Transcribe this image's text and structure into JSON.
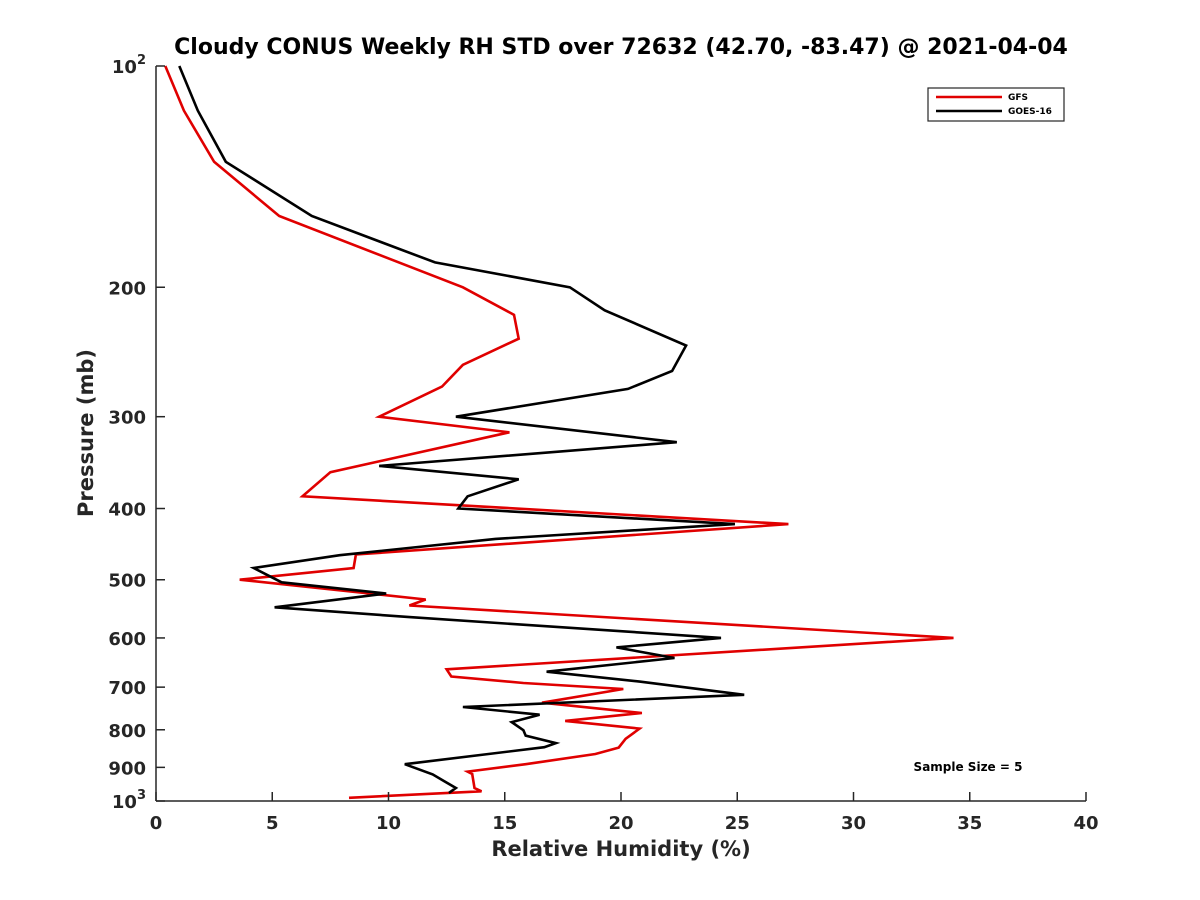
{
  "chart_data": {
    "type": "line",
    "title": "Cloudy CONUS Weekly RH STD over 72632 (42.70, -83.47) @ 2021-04-04",
    "xlabel": "Relative Humidity (%)",
    "ylabel": "Pressure (mb)",
    "xlim": [
      0,
      40
    ],
    "ylim": [
      100,
      1000
    ],
    "y_scale": "log",
    "y_reversed": true,
    "x_ticks": [
      "0",
      "5",
      "10",
      "15",
      "20",
      "25",
      "30",
      "35",
      "40"
    ],
    "y_ticks": [
      {
        "value": 100,
        "base": "10",
        "exp": "2"
      },
      {
        "value": 200,
        "label": "200"
      },
      {
        "value": 300,
        "label": "300"
      },
      {
        "value": 400,
        "label": "400"
      },
      {
        "value": 500,
        "label": "500"
      },
      {
        "value": 600,
        "label": "600"
      },
      {
        "value": 700,
        "label": "700"
      },
      {
        "value": 800,
        "label": "800"
      },
      {
        "value": 900,
        "label": "900"
      },
      {
        "value": 1000,
        "base": "10",
        "exp": "3"
      }
    ],
    "grid": false,
    "legend_position": "top-right",
    "annotation": "Sample Size = 5",
    "series": [
      {
        "name": "GFS",
        "color": "#e00000",
        "points": [
          [
            0.4,
            100
          ],
          [
            1.2,
            115
          ],
          [
            2.5,
            135
          ],
          [
            5.3,
            160
          ],
          [
            13.2,
            200
          ],
          [
            15.4,
            218
          ],
          [
            15.6,
            235
          ],
          [
            13.2,
            255
          ],
          [
            12.3,
            273
          ],
          [
            9.6,
            300
          ],
          [
            15.2,
            315
          ],
          [
            7.5,
            357
          ],
          [
            6.3,
            385
          ],
          [
            27.2,
            420
          ],
          [
            8.6,
            462
          ],
          [
            8.5,
            482
          ],
          [
            3.6,
            500
          ],
          [
            11.6,
            532
          ],
          [
            10.9,
            542
          ],
          [
            34.3,
            600
          ],
          [
            12.5,
            662
          ],
          [
            12.7,
            677
          ],
          [
            15.8,
            691
          ],
          [
            20.1,
            704
          ],
          [
            16.6,
            735
          ],
          [
            20.9,
            759
          ],
          [
            17.6,
            778
          ],
          [
            20.8,
            797
          ],
          [
            20.2,
            823
          ],
          [
            19.9,
            846
          ],
          [
            18.9,
            863
          ],
          [
            15.9,
            891
          ],
          [
            13.4,
            912
          ],
          [
            13.6,
            919
          ],
          [
            13.7,
            960
          ],
          [
            14.0,
            970
          ],
          [
            8.3,
            990
          ]
        ]
      },
      {
        "name": "GOES-16",
        "color": "#000000",
        "points": [
          [
            1.0,
            100
          ],
          [
            1.8,
            115
          ],
          [
            3.0,
            135
          ],
          [
            6.7,
            160
          ],
          [
            12.0,
            185
          ],
          [
            17.8,
            200
          ],
          [
            19.3,
            215
          ],
          [
            22.8,
            240
          ],
          [
            22.2,
            260
          ],
          [
            20.3,
            275
          ],
          [
            12.9,
            300
          ],
          [
            22.4,
            325
          ],
          [
            9.6,
            350
          ],
          [
            15.6,
            365
          ],
          [
            13.4,
            385
          ],
          [
            13.0,
            400
          ],
          [
            24.9,
            420
          ],
          [
            14.6,
            440
          ],
          [
            7.9,
            463
          ],
          [
            4.2,
            482
          ],
          [
            5.4,
            504
          ],
          [
            9.9,
            522
          ],
          [
            5.1,
            545
          ],
          [
            10.9,
            562
          ],
          [
            24.3,
            600
          ],
          [
            19.8,
            618
          ],
          [
            22.3,
            639
          ],
          [
            16.8,
            667
          ],
          [
            20.8,
            688
          ],
          [
            25.3,
            717
          ],
          [
            13.2,
            745
          ],
          [
            16.5,
            763
          ],
          [
            15.3,
            781
          ],
          [
            15.8,
            801
          ],
          [
            15.9,
            815
          ],
          [
            17.2,
            834
          ],
          [
            16.7,
            845
          ],
          [
            10.7,
            891
          ],
          [
            11.9,
            920
          ],
          [
            12.4,
            940
          ],
          [
            12.9,
            960
          ],
          [
            12.6,
            975
          ]
        ]
      }
    ]
  }
}
